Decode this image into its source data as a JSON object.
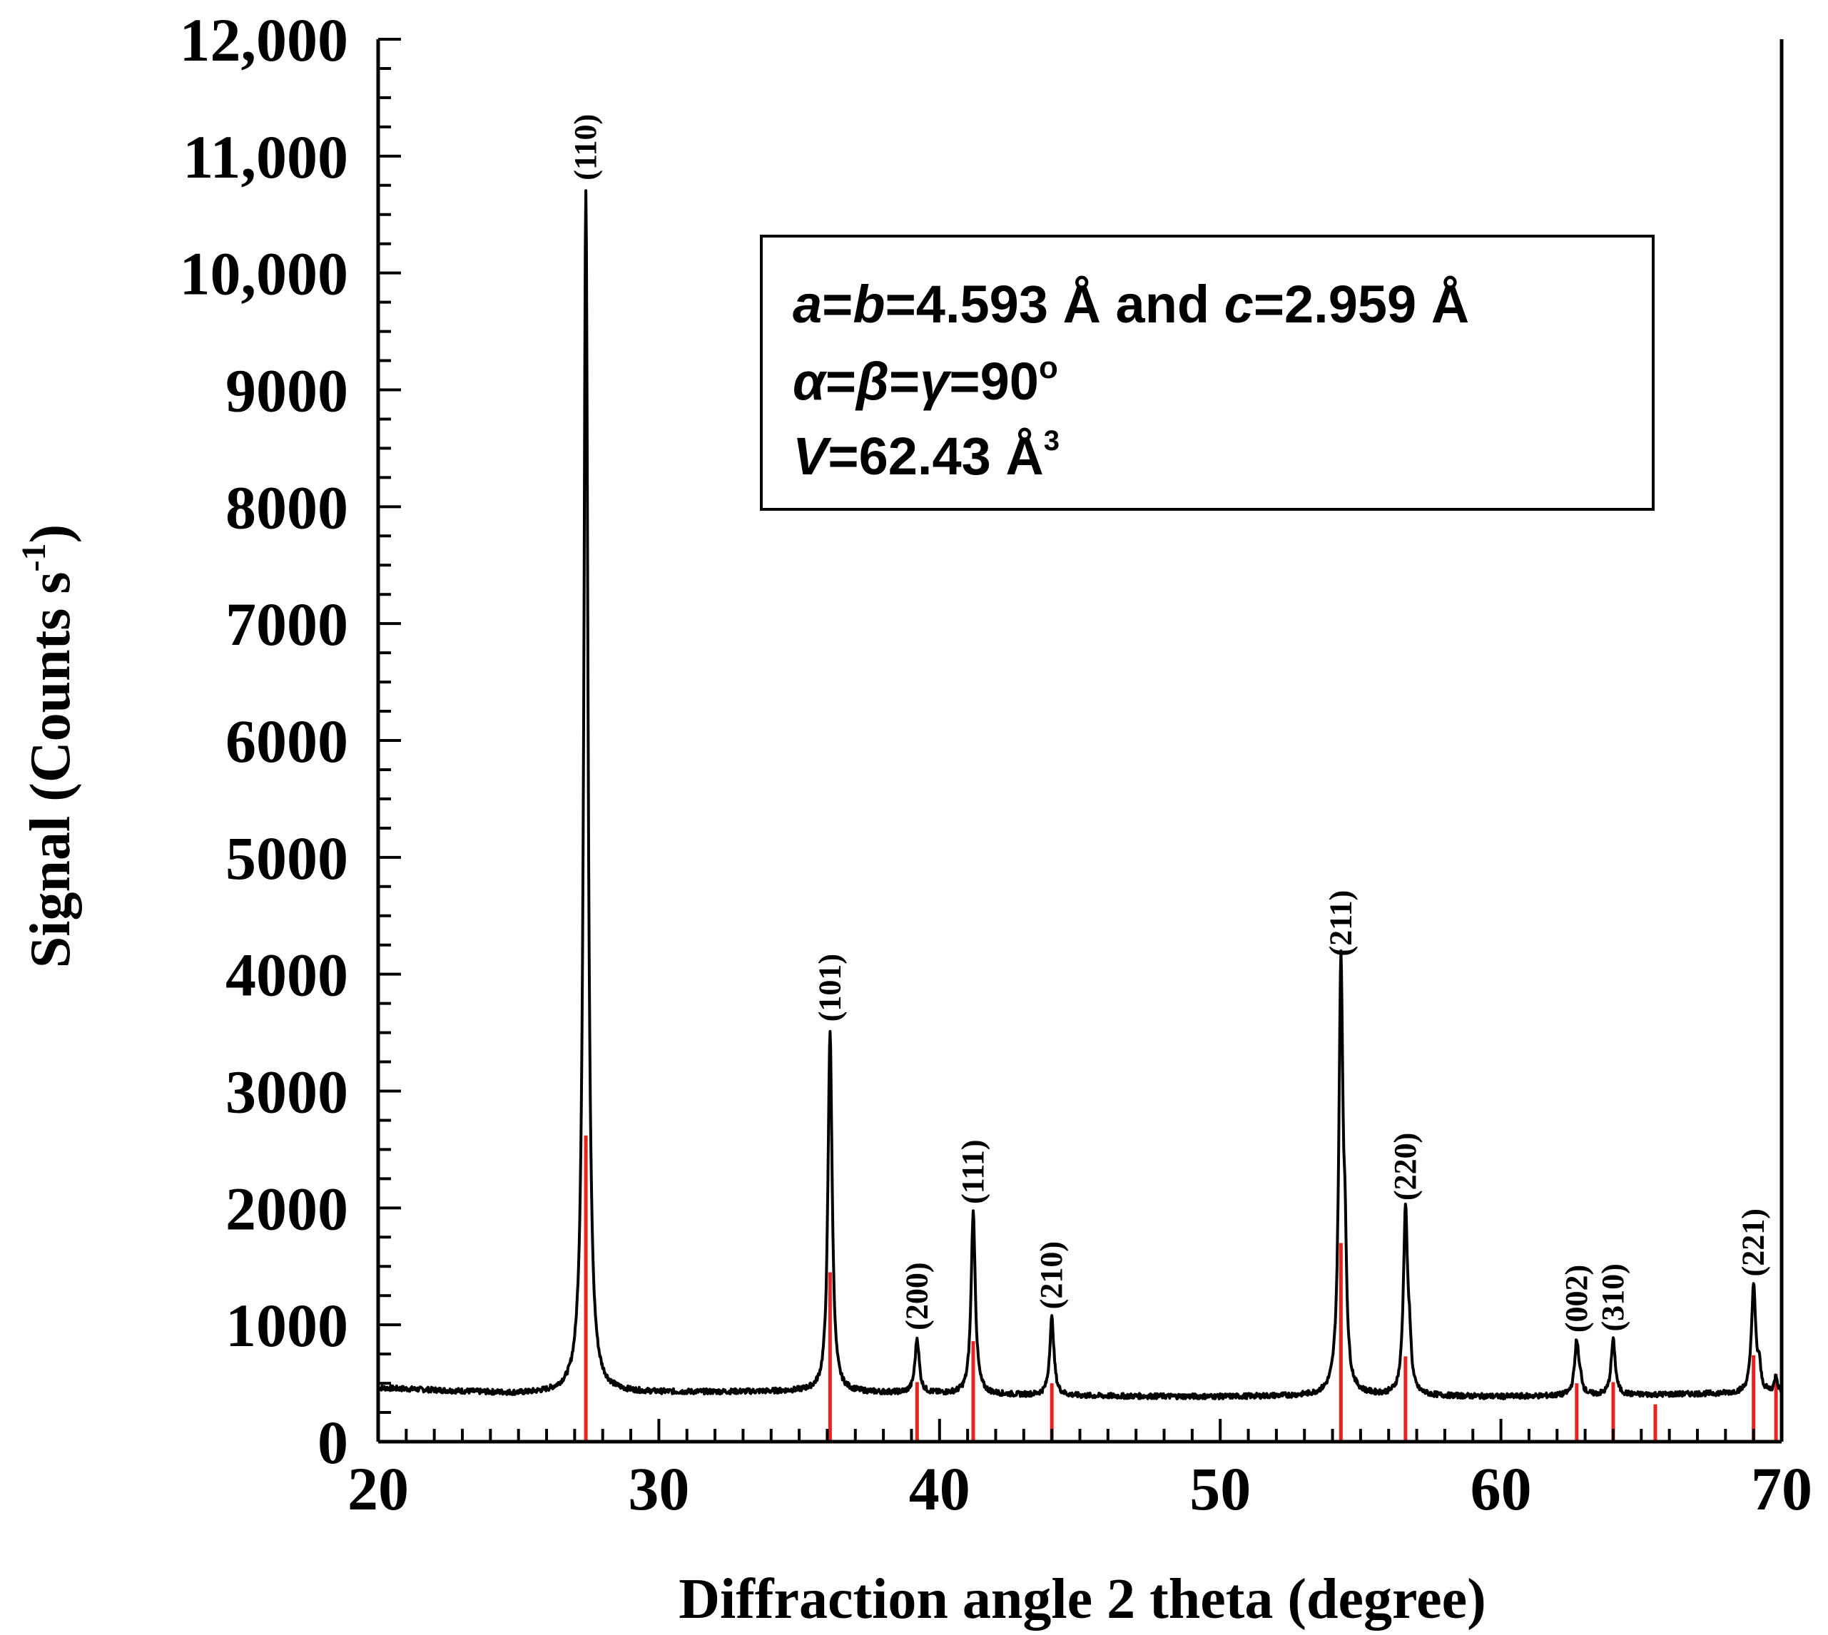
{
  "chart_data": {
    "type": "line",
    "xlabel": "Diffraction angle 2 theta (degree)",
    "ylabel": "Signal (Counts s",
    "ylabel_sup": "-1",
    "ylabel_end": ")",
    "xlim": [
      20,
      70
    ],
    "ylim": [
      0,
      12000
    ],
    "x_ticks": [
      20,
      30,
      40,
      50,
      60,
      70
    ],
    "x_tick_labels": [
      "20",
      "30",
      "40",
      "50",
      "60",
      "70"
    ],
    "y_ticks": [
      0,
      1000,
      2000,
      3000,
      4000,
      5000,
      6000,
      7000,
      8000,
      9000,
      10000,
      11000,
      12000
    ],
    "y_tick_labels": [
      "0",
      "1000",
      "2000",
      "3000",
      "4000",
      "5000",
      "6000",
      "7000",
      "8000",
      "9000",
      "10,000",
      "11,000",
      "12,000"
    ],
    "grid": false,
    "colors": {
      "pattern": "#000000",
      "reference": "#e8231f"
    },
    "baseline": [
      [
        20,
        460
      ],
      [
        25,
        410
      ],
      [
        30,
        420
      ],
      [
        35,
        430
      ],
      [
        40,
        410
      ],
      [
        45,
        390
      ],
      [
        50,
        385
      ],
      [
        55,
        395
      ],
      [
        60,
        385
      ],
      [
        65,
        400
      ],
      [
        70,
        420
      ]
    ],
    "peaks": [
      {
        "hkl": "(110)",
        "x": 27.4,
        "y": 10720,
        "ref": 2620
      },
      {
        "hkl": "(101)",
        "x": 36.1,
        "y": 3520,
        "ref": 1450
      },
      {
        "hkl": "(200)",
        "x": 39.2,
        "y": 880,
        "ref": 510
      },
      {
        "hkl": "(111)",
        "x": 41.2,
        "y": 1960,
        "ref": 860
      },
      {
        "hkl": "(210)",
        "x": 44.0,
        "y": 1060,
        "ref": 500
      },
      {
        "hkl": "(211)",
        "x": 54.3,
        "y": 4080,
        "ref": 1700
      },
      {
        "hkl": "(220)",
        "x": 56.6,
        "y": 1990,
        "ref": 730
      },
      {
        "hkl": "(002)",
        "x": 62.7,
        "y": 860,
        "ref": 500
      },
      {
        "hkl": "(310)",
        "x": 64.0,
        "y": 870,
        "ref": 510
      },
      {
        "hkl": "(221)",
        "x": 69.0,
        "y": 1340,
        "ref": 740
      }
    ],
    "unlabeled_reference_lines": [
      {
        "x": 65.5,
        "ref": 320
      },
      {
        "x": 69.8,
        "ref": 580
      }
    ]
  },
  "info_box": {
    "lattice_a": "a",
    "lattice_eq1": "=",
    "lattice_b": "b",
    "lattice_val1": "=4.593 Å and ",
    "lattice_c": "c",
    "lattice_val2": "=2.959 Å",
    "angles_alpha": "α",
    "angles_eq1": "=",
    "angles_beta": "β",
    "angles_eq2": "=",
    "angles_gamma": "γ",
    "angles_val": "=90",
    "angles_deg": "o",
    "volume_v": "V",
    "volume_val": "=62.43 Å",
    "volume_exp": "3"
  }
}
